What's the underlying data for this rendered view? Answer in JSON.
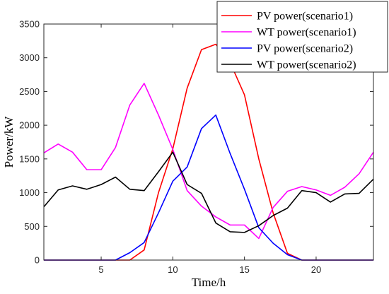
{
  "chart_data": {
    "type": "line",
    "xlabel": "Time/h",
    "ylabel": "Power/kW",
    "xlim": [
      1,
      24
    ],
    "ylim": [
      0,
      3500
    ],
    "xticks": [
      5,
      10,
      15,
      20
    ],
    "yticks": [
      0,
      500,
      1000,
      1500,
      2000,
      2500,
      3000,
      3500
    ],
    "grid": false,
    "legend_position": "top-right",
    "x": [
      1,
      2,
      3,
      4,
      5,
      6,
      7,
      8,
      9,
      10,
      11,
      12,
      13,
      14,
      15,
      16,
      17,
      18,
      19,
      20,
      21,
      22,
      23,
      24
    ],
    "series": [
      {
        "name": "PV power(scenario1)",
        "color": "#ff0000",
        "values": [
          0,
          0,
          0,
          0,
          0,
          0,
          0,
          150,
          1000,
          1650,
          2550,
          3120,
          3200,
          2930,
          2450,
          1500,
          700,
          100,
          0,
          0,
          0,
          0,
          0,
          0
        ]
      },
      {
        "name": "WT power(scenario1)",
        "color": "#ff00ff",
        "values": [
          1590,
          1720,
          1600,
          1340,
          1340,
          1670,
          2300,
          2620,
          2150,
          1640,
          1030,
          800,
          640,
          520,
          520,
          320,
          780,
          1020,
          1090,
          1040,
          960,
          1080,
          1280,
          1600
        ]
      },
      {
        "name": "PV power(scenario2)",
        "color": "#0000ff",
        "values": [
          0,
          0,
          0,
          0,
          0,
          0,
          110,
          260,
          700,
          1170,
          1380,
          1950,
          2150,
          1580,
          1050,
          480,
          250,
          80,
          0,
          0,
          0,
          0,
          0,
          0
        ]
      },
      {
        "name": "WT power(scenario2)",
        "color": "#000000",
        "values": [
          790,
          1040,
          1100,
          1050,
          1120,
          1230,
          1050,
          1030,
          1310,
          1600,
          1120,
          990,
          550,
          420,
          410,
          510,
          660,
          770,
          1030,
          1000,
          860,
          980,
          990,
          1200
        ]
      }
    ]
  }
}
